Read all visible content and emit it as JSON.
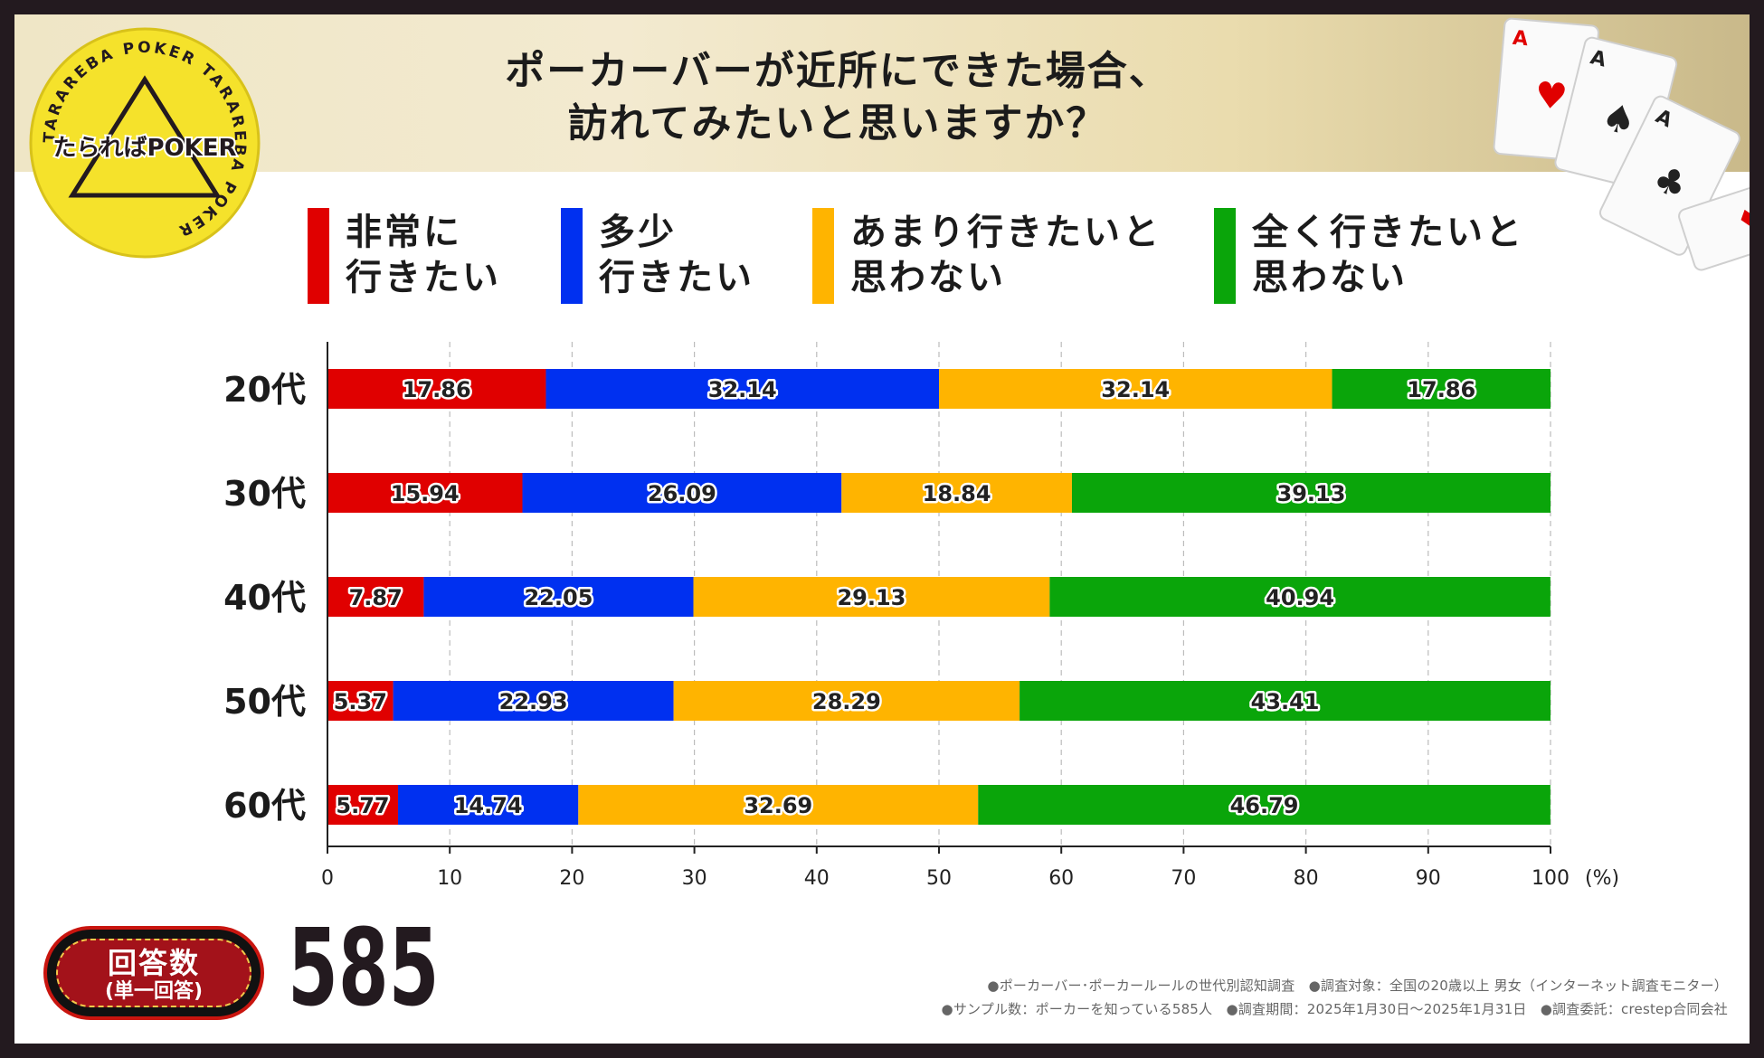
{
  "title": {
    "line1": "ポーカーバーが近所にできた場合、",
    "line2": "訪れてみたいと思いますか？"
  },
  "logo": {
    "main": "たらればPOKER",
    "main_text": "たらればPOKER",
    "ring_text": "TARAREBA POKER TARAREBA POKER"
  },
  "colors": {
    "very": "#e00000",
    "somewhat": "#0030f0",
    "not_much": "#ffb400",
    "not_at_all": "#0aa50a",
    "frame": "#231a1f"
  },
  "legend": [
    {
      "line1": "非常に",
      "line2": "行きたい",
      "color": "#e00000"
    },
    {
      "line1": "多少",
      "line2": "行きたい",
      "color": "#0030f0"
    },
    {
      "line1": "あまり行きたいと",
      "line2": "思わない",
      "color": "#ffb400"
    },
    {
      "line1": "全く行きたいと",
      "line2": "思わない",
      "color": "#0aa50a"
    }
  ],
  "chart_data": {
    "type": "bar",
    "orientation": "horizontal",
    "stacked": true,
    "categories": [
      "20代",
      "30代",
      "40代",
      "50代",
      "60代"
    ],
    "series": [
      {
        "name": "非常に行きたい",
        "values": [
          17.86,
          15.94,
          7.87,
          5.37,
          5.77
        ],
        "color": "#e00000"
      },
      {
        "name": "多少行きたい",
        "values": [
          32.14,
          26.09,
          22.05,
          22.93,
          14.74
        ],
        "color": "#0030f0"
      },
      {
        "name": "あまり行きたいと思わない",
        "values": [
          32.14,
          18.84,
          29.13,
          28.29,
          32.69
        ],
        "color": "#ffb400"
      },
      {
        "name": "全く行きたいと思わない",
        "values": [
          17.86,
          39.13,
          40.94,
          43.41,
          46.79
        ],
        "color": "#0aa50a"
      }
    ],
    "labels": [
      [
        "17.86",
        "32.14",
        "32.14",
        "17.86"
      ],
      [
        "15.94",
        "26.09",
        "18.84",
        "39.13"
      ],
      [
        "7.87",
        "22.05",
        "29.13",
        "40.94"
      ],
      [
        "5.37",
        "22.93",
        "28.29",
        "43.41"
      ],
      [
        "5.77",
        "14.74",
        "32.69",
        "46.79"
      ]
    ],
    "xlim": [
      0,
      100
    ],
    "xticks": [
      "0",
      "10",
      "20",
      "30",
      "40",
      "50",
      "60",
      "70",
      "80",
      "90",
      "100"
    ],
    "xunit": "(%)",
    "grid": "vertical dashed",
    "legend_position": "top"
  },
  "respondents": {
    "label": "回答数",
    "sub": "(単一回答)",
    "count": "585"
  },
  "notes": {
    "line1": "●ポーカーバー･ポーカールールの世代別認知調査　●調査対象：全国の20歳以上 男女（インターネット調査モニター）",
    "line2": "●サンプル数：ポーカーを知っている585人　●調査期間：2025年1月30日～2025年1月31日　●調査委託：crestep合同会社"
  }
}
